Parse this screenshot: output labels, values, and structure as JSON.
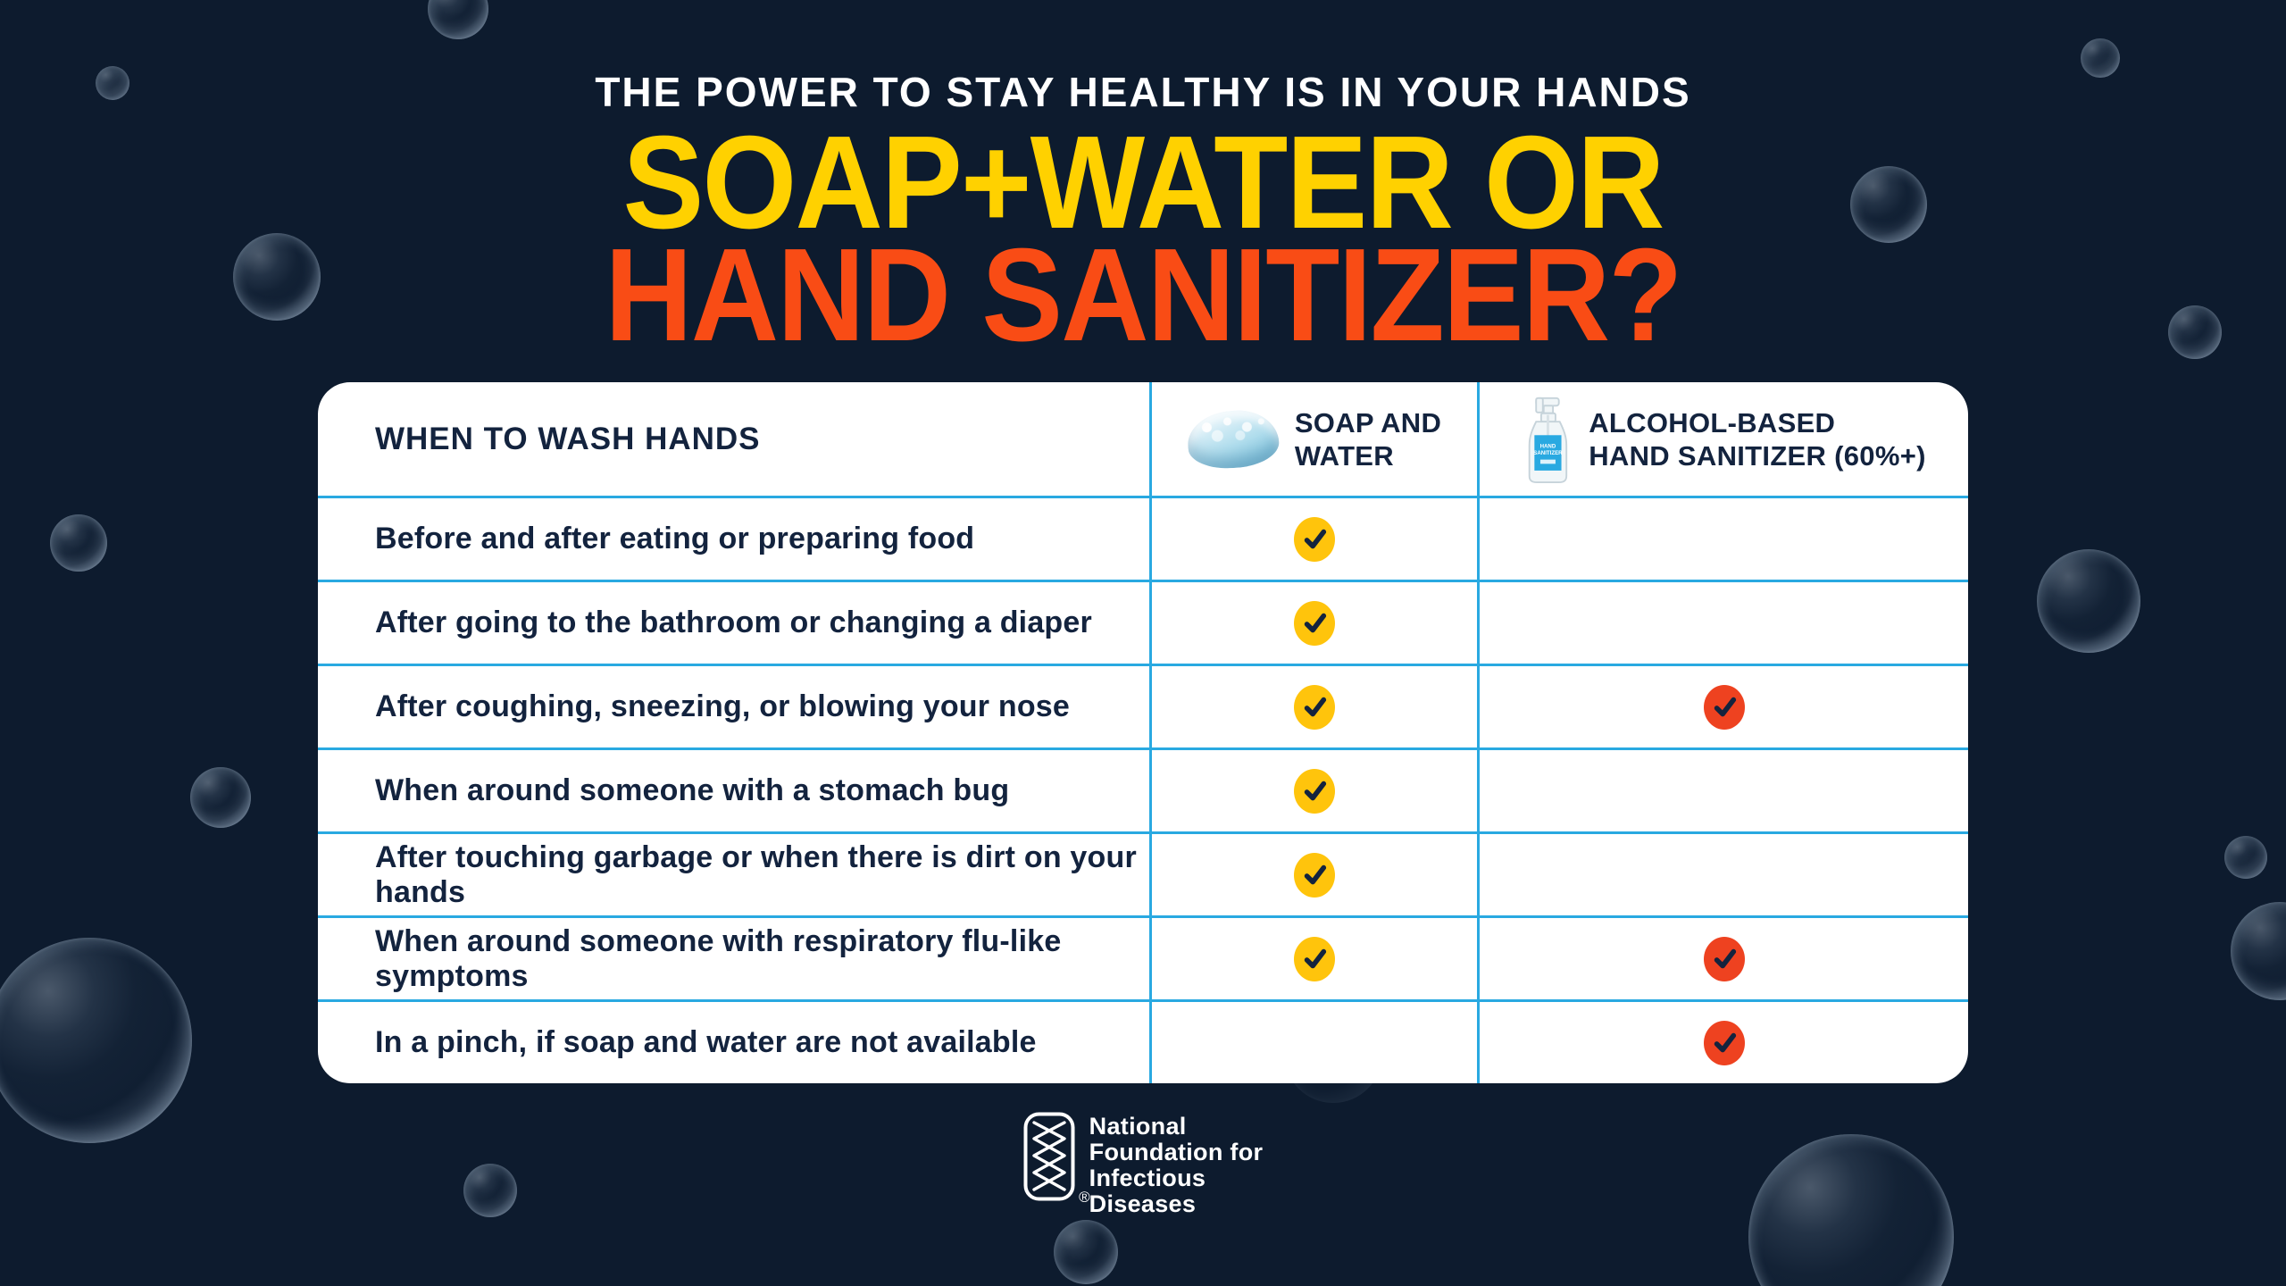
{
  "header": {
    "kicker": "THE POWER TO STAY HEALTHY IS IN YOUR HANDS",
    "title_line_1": "SOAP+WATER OR",
    "title_line_2": "HAND SANITIZER?"
  },
  "table": {
    "corner_header": "WHEN TO WASH HANDS",
    "columns": [
      {
        "id": "soap_water",
        "icon": "soap-bar-icon",
        "label_lines": [
          "SOAP AND",
          "WATER"
        ]
      },
      {
        "id": "hand_sanitizer",
        "icon": "sanitizer-bottle-icon",
        "label_lines": [
          "ALCOHOL-BASED",
          "HAND SANITIZER (60%+)"
        ]
      }
    ],
    "rows": [
      {
        "label": "Before and after eating or preparing food",
        "soap_water": true,
        "hand_sanitizer": false
      },
      {
        "label": "After going to the bathroom or changing a diaper",
        "soap_water": true,
        "hand_sanitizer": false
      },
      {
        "label": "After coughing, sneezing, or blowing your nose",
        "soap_water": true,
        "hand_sanitizer": true
      },
      {
        "label": "When around someone with a stomach bug",
        "soap_water": true,
        "hand_sanitizer": false
      },
      {
        "label": "After touching garbage or when there is dirt on your hands",
        "soap_water": true,
        "hand_sanitizer": false
      },
      {
        "label": "When around someone with respiratory flu-like symptoms",
        "soap_water": true,
        "hand_sanitizer": true
      },
      {
        "label": "In a pinch, if soap and water are not available",
        "soap_water": false,
        "hand_sanitizer": true
      }
    ]
  },
  "sanitizer_bottle": {
    "label_lines": [
      "HAND",
      "SANITIZER"
    ]
  },
  "footer": {
    "org_name_lines": [
      "National",
      "Foundation for",
      "Infectious",
      "Diseases"
    ],
    "registered_mark": "®"
  },
  "colors": {
    "background": "#0D1B2E",
    "title_yellow": "#FFD100",
    "title_orange": "#F94C15",
    "check_yellow": "#FFC40C",
    "check_orange": "#EE4220",
    "divider_blue": "#29A9E1",
    "table_text_navy": "#13233E"
  }
}
